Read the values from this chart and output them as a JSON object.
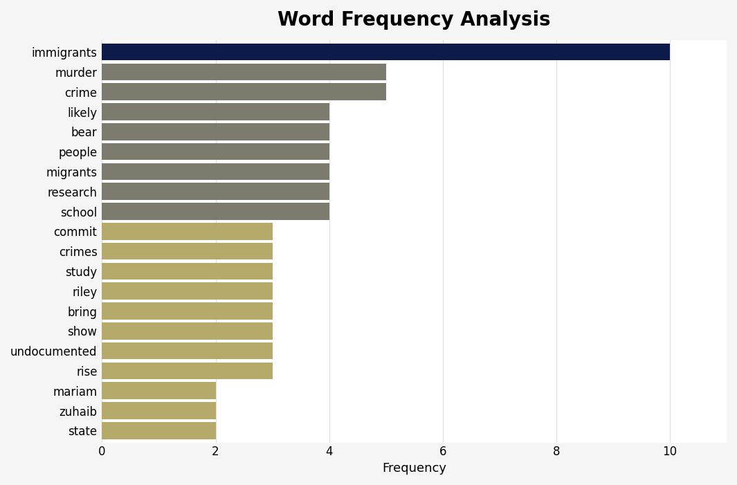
{
  "title": "Word Frequency Analysis",
  "xlabel": "Frequency",
  "categories": [
    "immigrants",
    "murder",
    "crime",
    "likely",
    "bear",
    "people",
    "migrants",
    "research",
    "school",
    "commit",
    "crimes",
    "study",
    "riley",
    "bring",
    "show",
    "undocumented",
    "rise",
    "mariam",
    "zuhaib",
    "state"
  ],
  "values": [
    10,
    5,
    5,
    4,
    4,
    4,
    4,
    4,
    4,
    3,
    3,
    3,
    3,
    3,
    3,
    3,
    3,
    2,
    2,
    2
  ],
  "bar_colors": [
    "#0d1b4b",
    "#7d7a6e",
    "#7d7a6e",
    "#7d7a6e",
    "#7d7a6e",
    "#7d7a6e",
    "#7d7a6e",
    "#7d7a6e",
    "#7d7a6e",
    "#b5aa6a",
    "#b5aa6a",
    "#b5aa6a",
    "#b5aa6a",
    "#b5aa6a",
    "#b5aa6a",
    "#b5aa6a",
    "#b5aa6a",
    "#b5aa6a",
    "#b5aa6a",
    "#b5aa6a"
  ],
  "xlim": [
    0,
    11
  ],
  "xticks": [
    0,
    2,
    4,
    6,
    8,
    10
  ],
  "background_color": "#f5f5f5",
  "plot_bg_color": "#ffffff",
  "title_fontsize": 20,
  "label_fontsize": 13,
  "tick_fontsize": 12,
  "bar_height": 0.85
}
